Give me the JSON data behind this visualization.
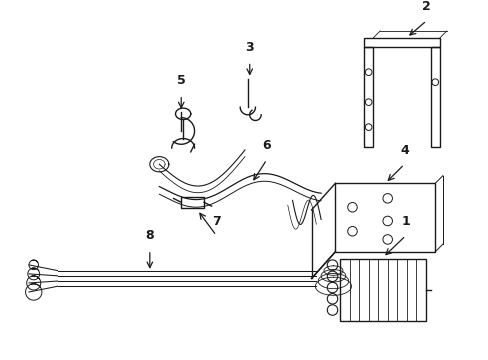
{
  "bg_color": "#ffffff",
  "line_color": "#1a1a1a",
  "lw": 1.0,
  "fig_w": 4.89,
  "fig_h": 3.6,
  "dpi": 100
}
